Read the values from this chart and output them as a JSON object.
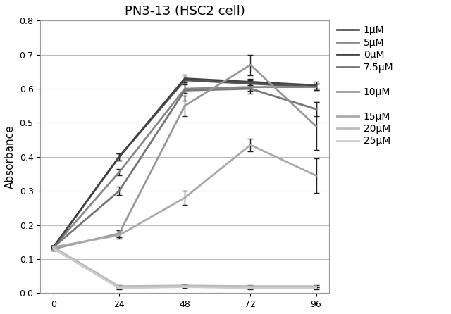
{
  "title": "PN3-13 (HSC2 cell)",
  "xlabel": "",
  "ylabel": "Absorbance",
  "x": [
    0,
    24,
    48,
    72,
    96
  ],
  "ylim": [
    0,
    0.8
  ],
  "yticks": [
    0.0,
    0.1,
    0.2,
    0.3,
    0.4,
    0.5,
    0.6,
    0.7,
    0.8
  ],
  "xticks": [
    0,
    24,
    48,
    72,
    96
  ],
  "series": [
    {
      "label": "1μM",
      "color": "#555555",
      "linewidth": 2.0,
      "y": [
        0.135,
        0.4,
        0.625,
        0.615,
        0.605
      ],
      "yerr": [
        0.005,
        0.01,
        0.01,
        0.01,
        0.01
      ]
    },
    {
      "label": "5μM",
      "color": "#888888",
      "linewidth": 2.0,
      "y": [
        0.135,
        0.355,
        0.6,
        0.605,
        0.605
      ],
      "yerr": [
        0.005,
        0.01,
        0.012,
        0.012,
        0.01
      ]
    },
    {
      "label": "0μM",
      "color": "#444444",
      "linewidth": 2.0,
      "y": [
        0.135,
        0.4,
        0.63,
        0.62,
        0.61
      ],
      "yerr": [
        0.005,
        0.01,
        0.012,
        0.01,
        0.01
      ]
    },
    {
      "label": "7.5μM",
      "color": "#777777",
      "linewidth": 2.0,
      "y": [
        0.135,
        0.3,
        0.595,
        0.6,
        0.54
      ],
      "yerr": [
        0.005,
        0.012,
        0.03,
        0.015,
        0.02
      ]
    },
    {
      "label": "10μM",
      "color": "#999999",
      "linewidth": 2.0,
      "y": [
        0.13,
        0.175,
        0.55,
        0.67,
        0.49
      ],
      "yerr": [
        0.005,
        0.01,
        0.03,
        0.03,
        0.07
      ]
    },
    {
      "label": "15μM",
      "color": "#aaaaaa",
      "linewidth": 2.0,
      "y": [
        0.135,
        0.17,
        0.28,
        0.435,
        0.345
      ],
      "yerr": [
        0.005,
        0.01,
        0.02,
        0.018,
        0.05
      ]
    },
    {
      "label": "20μM",
      "color": "#bbbbbb",
      "linewidth": 2.0,
      "y": [
        0.135,
        0.02,
        0.022,
        0.02,
        0.02
      ],
      "yerr": [
        0.005,
        0.003,
        0.003,
        0.003,
        0.003
      ]
    },
    {
      "label": "25μM",
      "color": "#cccccc",
      "linewidth": 2.0,
      "y": [
        0.13,
        0.015,
        0.018,
        0.015,
        0.015
      ],
      "yerr": [
        0.005,
        0.003,
        0.003,
        0.003,
        0.003
      ]
    }
  ],
  "background_color": "#ffffff",
  "grid_color": "#bbbbbb",
  "title_fontsize": 13,
  "axis_fontsize": 11,
  "legend_fontsize": 10,
  "figsize": [
    6.4,
    4.46
  ],
  "dpi": 100
}
